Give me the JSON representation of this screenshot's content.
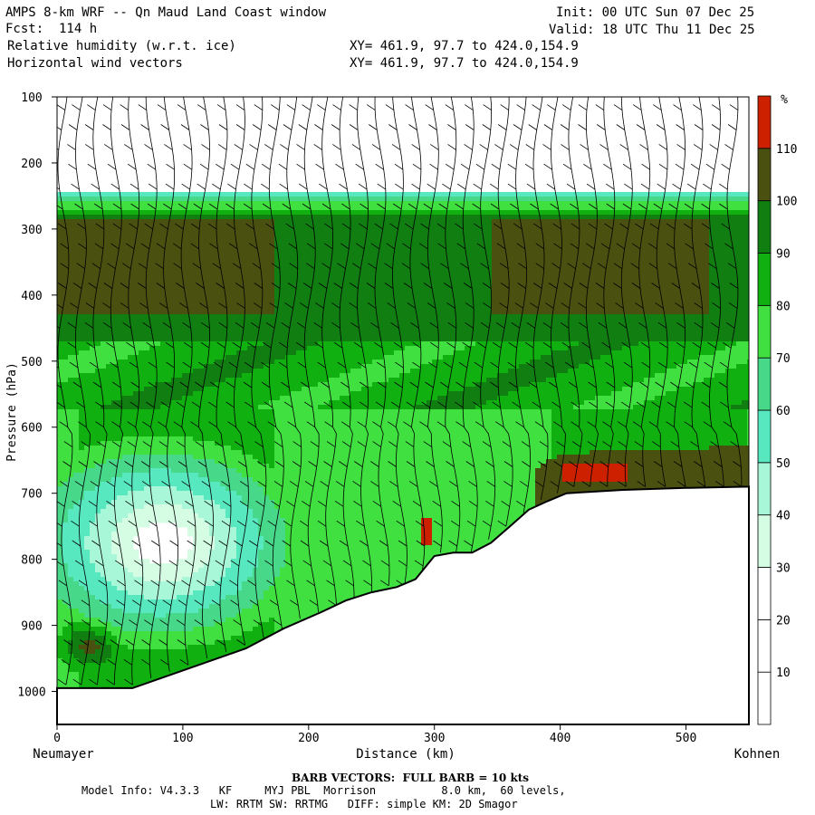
{
  "header": {
    "title": "AMPS 8-km WRF -- Qn Maud Land Coast window",
    "forecast": "Fcst:  114 h",
    "init": "Init: 00 UTC Sun 07 Dec 25",
    "valid": "Valid: 18 UTC Thu 11 Dec 25",
    "field1": "Relative humidity (w.r.t. ice)",
    "field2": "Horizontal wind vectors",
    "xy1": "XY= 461.9, 97.7 to 424.0,154.9",
    "xy2": "XY= 461.9, 97.7 to 424.0,154.9"
  },
  "footer": {
    "barb_note": "BARB VECTORS:  FULL BARB = 10 kts",
    "model_info_1": "Model Info: V4.3.3   KF     MYJ PBL  Morrison          8.0 km,  60 levels,",
    "model_info_2": "LW: RRTM SW: RRTMG   DIFF: simple KM: 2D Smagor"
  },
  "chart_data": {
    "type": "heatmap",
    "xlabel": "Distance (km)",
    "ylabel": "Pressure (hPa)",
    "x_start_label": "Neumayer",
    "x_end_label": "Kohnen",
    "xlim": [
      0,
      550
    ],
    "ylim": [
      1050,
      100
    ],
    "x_ticks": [
      0,
      100,
      200,
      300,
      400,
      500
    ],
    "y_ticks": [
      100,
      200,
      300,
      400,
      500,
      600,
      700,
      800,
      900,
      1000
    ],
    "colorbar": {
      "unit": "%",
      "levels": [
        10,
        20,
        30,
        40,
        50,
        60,
        70,
        80,
        90,
        100,
        110
      ],
      "colors": [
        "#ffffff",
        "#ffffff",
        "#ffffff",
        "#d4fde4",
        "#a8f7d8",
        "#58e8c0",
        "#48d88a",
        "#40e040",
        "#10b010",
        "#107e10",
        "#4a5010",
        "#cc2000"
      ]
    },
    "terrain_pressure": [
      [
        0,
        995
      ],
      [
        60,
        995
      ],
      [
        90,
        975
      ],
      [
        120,
        955
      ],
      [
        150,
        935
      ],
      [
        180,
        905
      ],
      [
        210,
        880
      ],
      [
        230,
        862
      ],
      [
        250,
        850
      ],
      [
        270,
        842
      ],
      [
        285,
        830
      ],
      [
        300,
        795
      ],
      [
        315,
        790
      ],
      [
        330,
        790
      ],
      [
        345,
        775
      ],
      [
        360,
        750
      ],
      [
        375,
        725
      ],
      [
        390,
        712
      ],
      [
        405,
        700
      ],
      [
        450,
        695
      ],
      [
        500,
        692
      ],
      [
        550,
        690
      ]
    ],
    "moist_top_pressure": 250
  }
}
